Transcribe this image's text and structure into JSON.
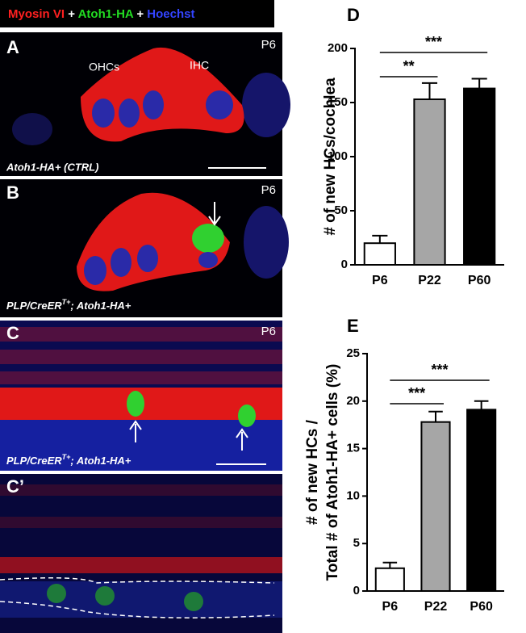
{
  "legend": {
    "myosin": "Myosin VI",
    "plus1": "+",
    "atoh": "Atoh1-HA",
    "plus2": "+",
    "hoechst": "Hoechst"
  },
  "panels": [
    {
      "letter": "A",
      "age": "P6",
      "ohc": "OHCs",
      "ihc": "IHC",
      "caption": "Atoh1-HA+ (CTRL)"
    },
    {
      "letter": "B",
      "age": "P6",
      "caption": "PLP/CreER",
      "sup": "T+",
      "caption_tail": "; Atoh1-HA+"
    },
    {
      "letter": "C",
      "age": "P6",
      "caption": "PLP/CreER",
      "sup": "T+",
      "caption_tail": "; Atoh1-HA+"
    },
    {
      "letter": "C’"
    }
  ],
  "chart_data": [
    {
      "type": "bar",
      "label": "D",
      "ylabel": [
        "# of new HCs/cochlea"
      ],
      "categories": [
        "P6",
        "P22",
        "P60"
      ],
      "values": [
        20,
        153,
        163
      ],
      "errors": [
        7,
        15,
        9
      ],
      "colors": [
        "#ffffff",
        "#a6a6a6",
        "#000000"
      ],
      "ylim": [
        0,
        200
      ],
      "yticks": [
        0,
        50,
        100,
        150,
        200
      ],
      "annotations": [
        "**",
        "***"
      ]
    },
    {
      "type": "bar",
      "label": "E",
      "ylabel": [
        "# of new HCs /",
        "Total # of Atoh1-HA+ cells (%)"
      ],
      "categories": [
        "P6",
        "P22",
        "P60"
      ],
      "values": [
        2.4,
        17.8,
        19.1
      ],
      "errors": [
        0.6,
        1.1,
        0.9
      ],
      "colors": [
        "#ffffff",
        "#a6a6a6",
        "#000000"
      ],
      "ylim": [
        0,
        25
      ],
      "yticks": [
        0,
        5,
        10,
        15,
        20,
        25
      ],
      "annotations": [
        "***",
        "***"
      ]
    }
  ]
}
